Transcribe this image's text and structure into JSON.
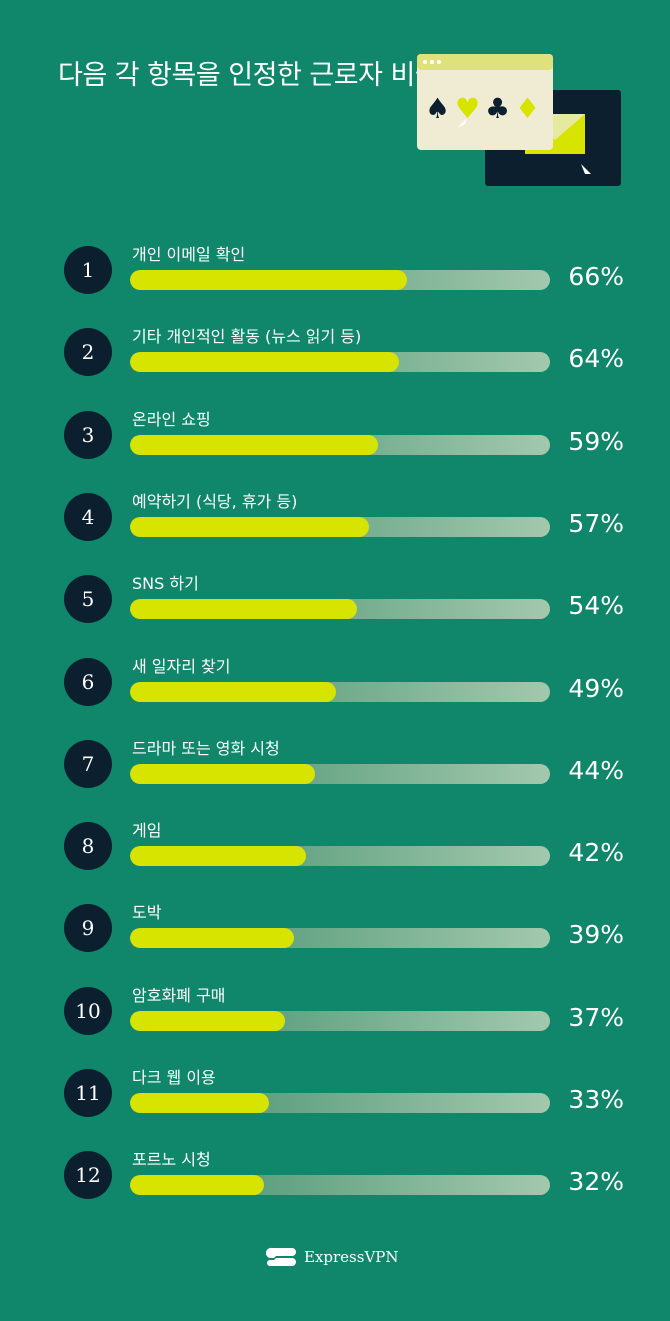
{
  "chart_data": {
    "type": "bar",
    "orientation": "horizontal",
    "title": "다음 각 항목을 인정한 근로자 비율",
    "xlim": [
      0,
      100
    ],
    "unit": "%",
    "categories": [
      "개인 이메일 확인",
      "기타 개인적인 활동 (뉴스 읽기 등)",
      "온라인 쇼핑",
      "예약하기 (식당, 휴가 등)",
      "SNS 하기",
      "새 일자리 찾기",
      "드라마 또는 영화 시청",
      "게임",
      "도박",
      "암호화폐 구매",
      "다크 웹 이용",
      "포르노 시청"
    ],
    "ranks": [
      "1",
      "2",
      "3",
      "4",
      "5",
      "6",
      "7",
      "8",
      "9",
      "10",
      "11",
      "12"
    ],
    "values": [
      66,
      64,
      59,
      57,
      54,
      49,
      44,
      42,
      39,
      37,
      33,
      32
    ],
    "value_labels": [
      "66%",
      "64%",
      "59%",
      "57%",
      "54%",
      "49%",
      "44%",
      "42%",
      "39%",
      "37%",
      "33%",
      "32%"
    ],
    "colors": {
      "background": "#10866a",
      "bar": "#d6e400",
      "rank_circle": "#0b1f2e"
    }
  },
  "brand": {
    "name": "ExpressVPN"
  }
}
